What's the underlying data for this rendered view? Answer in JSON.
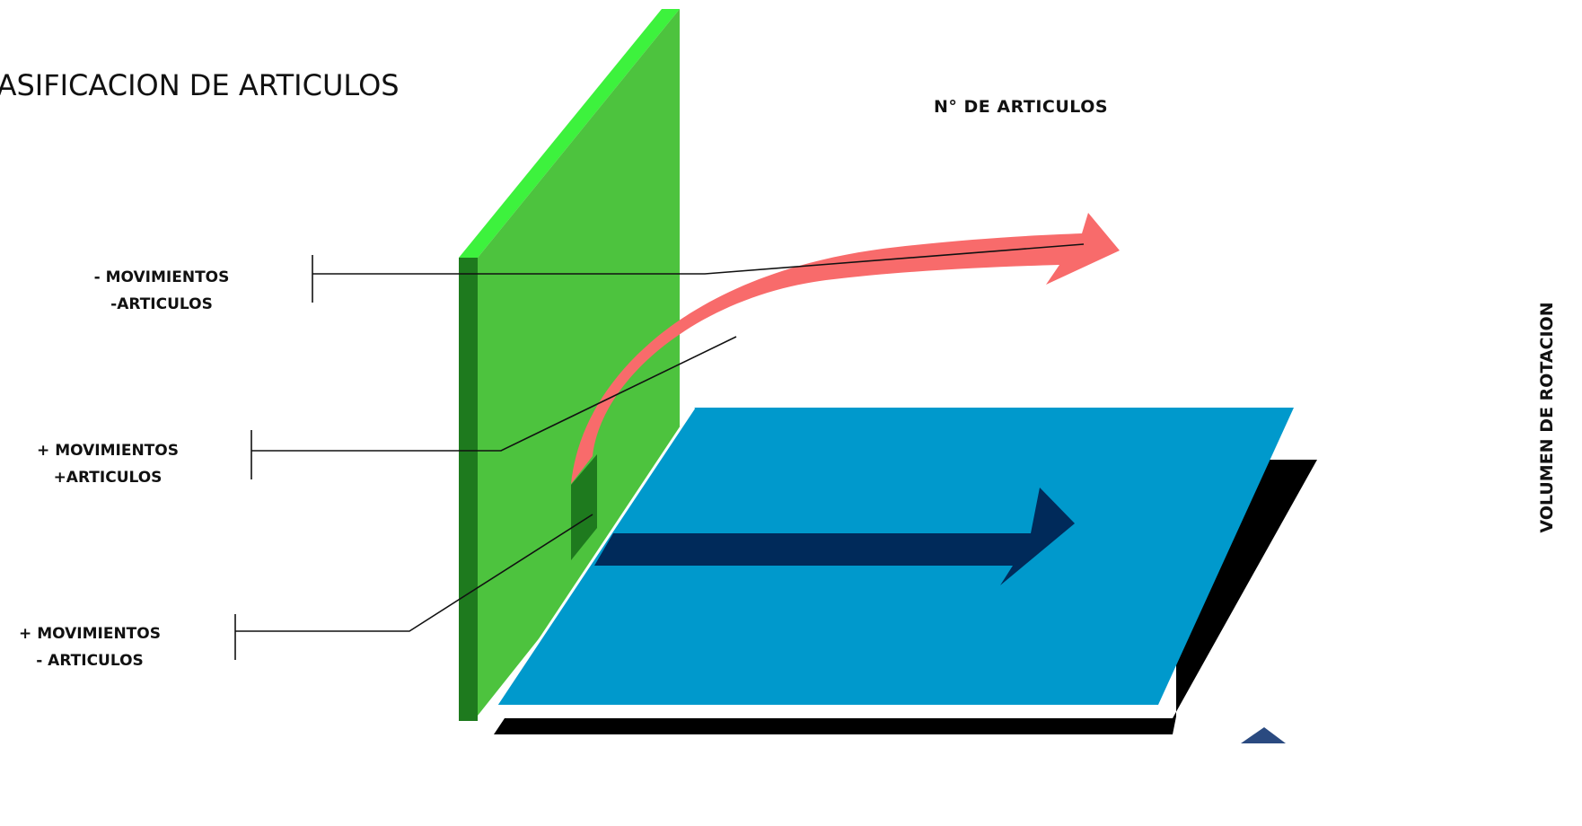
{
  "title": "LASIFICACION DE ARTICULOS",
  "axes": {
    "horizontal": "N° DE ARTICULOS",
    "vertical": "VOLUMEN DE ROTACION"
  },
  "categories": [
    {
      "line1": "- MOVIMIENTOS",
      "line2": "-ARTICULOS"
    },
    {
      "line1": "+ MOVIMIENTOS",
      "line2": "+ARTICULOS"
    },
    {
      "line1": "+ MOVIMIENTOS",
      "line2": "- ARTICULOS"
    }
  ],
  "colors": {
    "wall_face": "#4dc33e",
    "wall_edge_dark": "#1e7a1e",
    "wall_top": "#3df23d",
    "floor": "#0099cc",
    "floor_shadow": "#000000",
    "curved_arrow": "#f86b6b",
    "flat_arrow": "#002a5a",
    "corner_shape": "#2a4a80"
  }
}
